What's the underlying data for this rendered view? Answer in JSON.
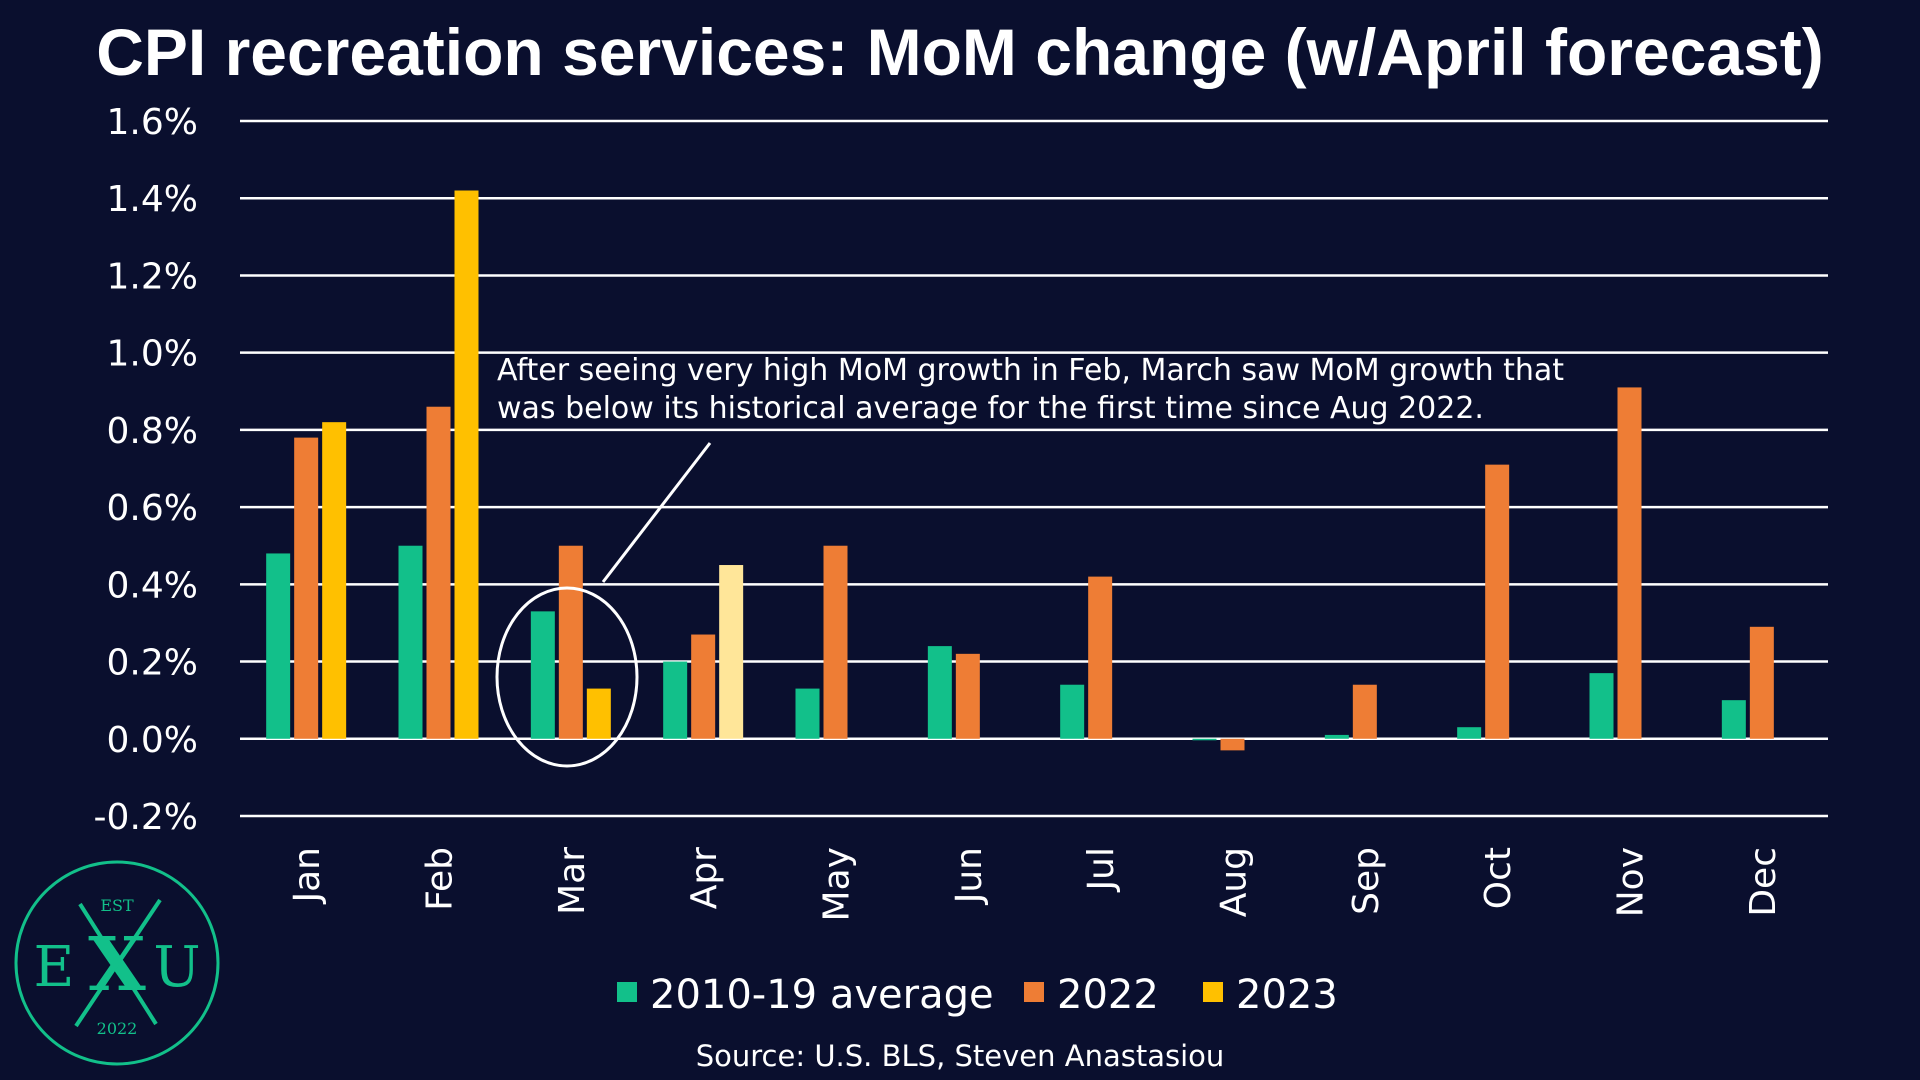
{
  "title": "CPI recreation services: MoM change (w/April forecast)",
  "source": "Source: U.S. BLS, Steven Anastasiou",
  "annotation": {
    "lines": [
      "After seeing very high MoM growth in Feb, March saw MoM growth that",
      "was below its historical average for the first time since Aug 2022."
    ]
  },
  "logo": {
    "top": "EST",
    "left": "E",
    "middle": "X",
    "right": "U",
    "bottom": "2022"
  },
  "colors": {
    "background": "#0a0f2e",
    "avg": "#12c08a",
    "y2022": "#ee7d35",
    "y2023": "#ffc000",
    "forecast": "#ffe699",
    "grid": "#ffffff",
    "logo": "#12c08a"
  },
  "chart_data": {
    "type": "bar",
    "categories": [
      "Jan",
      "Feb",
      "Mar",
      "Apr",
      "May",
      "Jun",
      "Jul",
      "Aug",
      "Sep",
      "Oct",
      "Nov",
      "Dec"
    ],
    "series": [
      {
        "name": "2010-19 average",
        "values": [
          0.48,
          0.5,
          0.33,
          0.2,
          0.13,
          0.24,
          0.14,
          0.0,
          0.01,
          0.03,
          0.17,
          0.1
        ]
      },
      {
        "name": "2022",
        "values": [
          0.78,
          0.86,
          0.5,
          0.27,
          0.5,
          0.22,
          0.42,
          -0.03,
          0.14,
          0.71,
          0.91,
          0.29
        ]
      },
      {
        "name": "2023",
        "values": [
          0.82,
          1.42,
          0.13,
          0.45,
          null,
          null,
          null,
          null,
          null,
          null,
          null,
          null
        ]
      }
    ],
    "forecast_point": {
      "series": "2023",
      "category": "Apr"
    },
    "ylim": [
      -0.2,
      1.6
    ],
    "yticks": [
      "-0.2%",
      "0.0%",
      "0.2%",
      "0.4%",
      "0.6%",
      "0.8%",
      "1.0%",
      "1.2%",
      "1.4%",
      "1.6%"
    ],
    "grid": true,
    "legend_position": "bottom",
    "xlabel": "",
    "ylabel": ""
  }
}
